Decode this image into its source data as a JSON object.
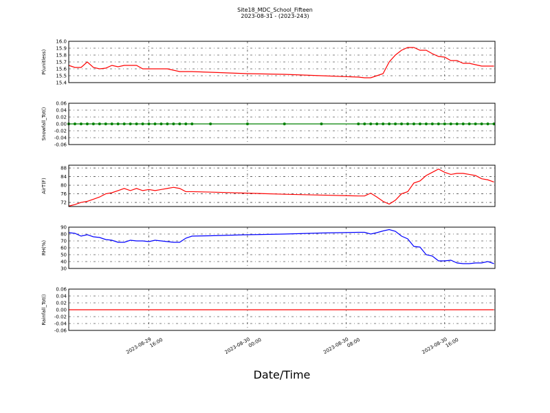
{
  "title": "Site18_MDC_School_Fifteen",
  "subtitle": "2023-08-31 - (2023-243)",
  "xlabel": "Date/Time",
  "x": [
    "2023-08-29 09:30",
    "2023-08-29 10:00",
    "2023-08-29 10:30",
    "2023-08-29 11:00",
    "2023-08-29 11:30",
    "2023-08-29 12:00",
    "2023-08-29 12:30",
    "2023-08-29 13:00",
    "2023-08-29 13:30",
    "2023-08-29 14:00",
    "2023-08-29 14:30",
    "2023-08-29 15:00",
    "2023-08-29 15:30",
    "2023-08-29 16:00",
    "2023-08-29 16:30",
    "2023-08-29 17:00",
    "2023-08-29 17:30",
    "2023-08-29 18:00",
    "2023-08-29 18:30",
    "2023-08-29 19:00",
    "2023-08-29 19:30",
    "2023-08-29 21:00",
    "2023-08-30 00:00",
    "2023-08-30 03:00",
    "2023-08-30 06:00",
    "2023-08-30 09:00",
    "2023-08-30 09:30",
    "2023-08-30 10:00",
    "2023-08-30 10:30",
    "2023-08-30 11:00",
    "2023-08-30 11:30",
    "2023-08-30 12:00",
    "2023-08-30 12:30",
    "2023-08-30 13:00",
    "2023-08-30 13:30",
    "2023-08-30 14:00",
    "2023-08-30 14:30",
    "2023-08-30 15:00",
    "2023-08-30 15:30",
    "2023-08-30 16:00",
    "2023-08-30 16:30",
    "2023-08-30 17:00",
    "2023-08-30 17:30",
    "2023-08-30 18:00",
    "2023-08-30 18:30",
    "2023-08-30 19:00",
    "2023-08-30 19:30",
    "2023-08-30 20:00"
  ],
  "xlim": [
    "2023-08-29 09:30",
    "2023-08-30 20:05"
  ],
  "xticks": [
    {
      "value": "2023-08-29 16:00",
      "label": "2023-08-29\n16:00"
    },
    {
      "value": "2023-08-30 00:00",
      "label": "2023-08-30\n00:00"
    },
    {
      "value": "2023-08-30 08:00",
      "label": "2023-08-30\n08:00"
    },
    {
      "value": "2023-08-30 16:00",
      "label": "2023-08-30\n16:00"
    }
  ],
  "grid": true,
  "chart_data": [
    {
      "type": "line",
      "ylabel": "P(unitless)",
      "color": "#ff0000",
      "ylim": [
        15.4,
        16.0
      ],
      "yticks": [
        15.4,
        15.5,
        15.6,
        15.7,
        15.8,
        15.9,
        {
          "value": 16.0,
          "label": "16.0"
        }
      ],
      "values": [
        15.65,
        15.62,
        15.62,
        15.7,
        15.62,
        15.6,
        15.61,
        15.65,
        15.63,
        15.65,
        15.65,
        15.65,
        15.6,
        15.6,
        15.6,
        15.6,
        15.6,
        15.58,
        15.56,
        15.56,
        15.56,
        15.55,
        15.53,
        15.52,
        15.5,
        15.48,
        15.47,
        15.47,
        15.5,
        15.53,
        15.7,
        15.8,
        15.87,
        15.91,
        15.91,
        15.87,
        15.87,
        15.82,
        15.78,
        15.77,
        15.72,
        15.72,
        15.68,
        15.68,
        15.66,
        15.64,
        15.64,
        15.64
      ]
    },
    {
      "type": "line",
      "ylabel": "Snowfall_Tot()",
      "color": "#008000",
      "markers": true,
      "ylim": [
        -0.06,
        0.06
      ],
      "yticks": [
        -0.06,
        -0.04,
        -0.02,
        {
          "value": 0,
          "label": "0.00"
        },
        0.02,
        0.04,
        0.06
      ],
      "values": [
        0,
        0,
        0,
        0,
        0,
        0,
        0,
        0,
        0,
        0,
        0,
        0,
        0,
        0,
        0,
        0,
        0,
        0,
        0,
        0,
        0,
        0,
        0,
        0,
        0,
        0,
        0,
        0,
        0,
        0,
        0,
        0,
        0,
        0,
        0,
        0,
        0,
        0,
        0,
        0,
        0,
        0,
        0,
        0,
        0,
        0,
        0,
        0
      ]
    },
    {
      "type": "line",
      "ylabel": "AirT(F)",
      "color": "#ff0000",
      "ylim": [
        70.1,
        89.3
      ],
      "yticks": [
        72,
        76,
        80,
        84,
        88
      ],
      "values": [
        70.3,
        71,
        72,
        72.5,
        73.5,
        74.5,
        76,
        76.5,
        77.5,
        78.5,
        77.5,
        78.5,
        77.5,
        78,
        77.5,
        78,
        78.5,
        79,
        78.5,
        77,
        77,
        76.8,
        76.3,
        75.8,
        75.4,
        75,
        75,
        76.3,
        74.5,
        72.5,
        71.2,
        73,
        76,
        77,
        81,
        82,
        84.5,
        86,
        87.5,
        86,
        85,
        85.5,
        85.5,
        85,
        84.5,
        83,
        82.5,
        81.5
      ]
    },
    {
      "type": "line",
      "ylabel": "RH(%)",
      "color": "#0000ff",
      "ylim": [
        30,
        90
      ],
      "yticks": [
        30,
        40,
        50,
        60,
        70,
        80,
        90
      ],
      "values": [
        82,
        81,
        77,
        79,
        76,
        75,
        72,
        71,
        68,
        68,
        71,
        70,
        70,
        69,
        71,
        70,
        69,
        68,
        68,
        74,
        77,
        77.5,
        79,
        80,
        81.5,
        82.5,
        82.5,
        80,
        82,
        84.5,
        86.5,
        84,
        77,
        73,
        62,
        61,
        50,
        48,
        41,
        41,
        42,
        38,
        37,
        37,
        38,
        38,
        40,
        37
      ]
    },
    {
      "type": "line",
      "ylabel": "Rainfall_Tot()",
      "color": "#ff0000",
      "ylim": [
        -0.06,
        0.06
      ],
      "yticks": [
        -0.06,
        -0.04,
        -0.02,
        {
          "value": 0,
          "label": "0.00"
        },
        0.02,
        0.04,
        0.06
      ],
      "values": [
        0,
        0,
        0,
        0,
        0,
        0,
        0,
        0,
        0,
        0,
        0,
        0,
        0,
        0,
        0,
        0,
        0,
        0,
        0,
        0,
        0,
        0,
        0,
        0,
        0,
        0,
        0,
        0,
        0,
        0,
        0,
        0,
        0,
        0,
        0,
        0,
        0,
        0,
        0,
        0,
        0,
        0,
        0,
        0,
        0,
        0,
        0,
        0
      ]
    }
  ]
}
